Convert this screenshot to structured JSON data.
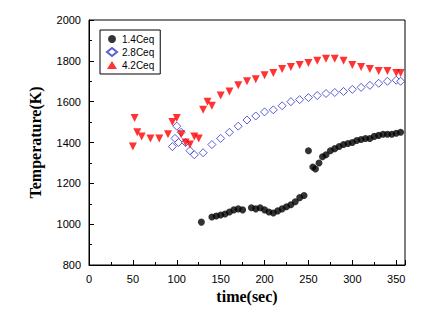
{
  "chart_data": {
    "type": "scatter",
    "x_label": "time(sec)",
    "y_label": "Temperature(K)",
    "xlim": [
      0,
      360
    ],
    "xticks": [
      0,
      50,
      100,
      150,
      200,
      250,
      300,
      350
    ],
    "ylim": [
      800,
      2000
    ],
    "yticks": [
      800,
      1000,
      1200,
      1400,
      1600,
      1800,
      2000
    ],
    "grid": false,
    "legend": "upper left",
    "series": [
      {
        "name": "1.4Ceq",
        "color": "#000000",
        "marker": "circle",
        "x": [
          128,
          140,
          145,
          150,
          155,
          160,
          165,
          170,
          175,
          185,
          190,
          195,
          200,
          205,
          210,
          215,
          220,
          225,
          230,
          235,
          240,
          245,
          250,
          255,
          258,
          262,
          266,
          270,
          275,
          280,
          285,
          290,
          295,
          300,
          305,
          310,
          315,
          320,
          325,
          330,
          335,
          340,
          345,
          350,
          355
        ],
        "values": [
          1010,
          1035,
          1040,
          1045,
          1050,
          1060,
          1070,
          1075,
          1070,
          1080,
          1075,
          1080,
          1070,
          1060,
          1055,
          1065,
          1075,
          1085,
          1095,
          1110,
          1130,
          1140,
          1360,
          1280,
          1270,
          1300,
          1330,
          1340,
          1360,
          1370,
          1380,
          1390,
          1395,
          1400,
          1410,
          1415,
          1420,
          1420,
          1430,
          1435,
          1440,
          1440,
          1440,
          1445,
          1450
        ]
      },
      {
        "name": "2.8Ceq",
        "color": "#3333cc",
        "marker": "open_diamond",
        "x": [
          95,
          98,
          100,
          102,
          105,
          110,
          115,
          120,
          130,
          140,
          150,
          160,
          170,
          180,
          190,
          200,
          210,
          220,
          230,
          240,
          250,
          260,
          270,
          280,
          290,
          300,
          310,
          320,
          330,
          340,
          350,
          355
        ],
        "values": [
          1380,
          1420,
          1480,
          1400,
          1450,
          1400,
          1360,
          1340,
          1350,
          1390,
          1420,
          1450,
          1480,
          1510,
          1530,
          1550,
          1560,
          1580,
          1600,
          1610,
          1620,
          1630,
          1640,
          1645,
          1650,
          1660,
          1670,
          1680,
          1690,
          1700,
          1705,
          1700
        ]
      },
      {
        "name": "4.2Ceq",
        "color": "#ff0000",
        "marker": "inverted_triangle",
        "x": [
          50,
          52,
          55,
          60,
          70,
          80,
          90,
          95,
          100,
          105,
          110,
          115,
          120,
          125,
          130,
          135,
          140,
          150,
          160,
          170,
          180,
          190,
          200,
          210,
          220,
          230,
          240,
          250,
          260,
          270,
          280,
          290,
          300,
          310,
          320,
          330,
          340,
          350,
          355
        ],
        "values": [
          1380,
          1520,
          1450,
          1430,
          1420,
          1420,
          1440,
          1500,
          1520,
          1440,
          1400,
          1390,
          1430,
          1420,
          1560,
          1600,
          1580,
          1630,
          1650,
          1680,
          1700,
          1710,
          1730,
          1740,
          1760,
          1770,
          1780,
          1790,
          1800,
          1810,
          1810,
          1800,
          1780,
          1770,
          1760,
          1750,
          1750,
          1740,
          1740
        ]
      }
    ]
  }
}
